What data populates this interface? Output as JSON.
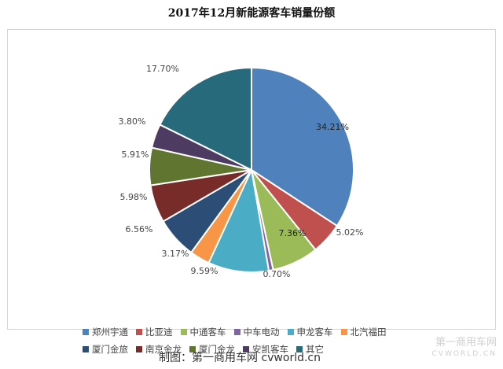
{
  "chart_data": {
    "type": "pie",
    "title": "2017年12月新能源客车销量份额",
    "slices": [
      {
        "label": "郑州宇通",
        "value": 34.21,
        "display": "34.21%",
        "color": "#4f81bd"
      },
      {
        "label": "比亚迪",
        "value": 5.02,
        "display": "5.02%",
        "color": "#c0504d"
      },
      {
        "label": "中通客车",
        "value": 7.36,
        "display": "7.36%",
        "color": "#9bbb59"
      },
      {
        "label": "中车电动",
        "value": 0.7,
        "display": "0.70%",
        "color": "#8064a2"
      },
      {
        "label": "申龙客车",
        "value": 9.59,
        "display": "9.59%",
        "color": "#4bacc6"
      },
      {
        "label": "北汽福田",
        "value": 3.17,
        "display": "3.17%",
        "color": "#f79646"
      },
      {
        "label": "厦门金旅",
        "value": 6.56,
        "display": "6.56%",
        "color": "#2c4d75"
      },
      {
        "label": "南京金龙",
        "value": 5.98,
        "display": "5.98%",
        "color": "#772c2a"
      },
      {
        "label": "厦门金龙",
        "value": 5.91,
        "display": "5.91%",
        "color": "#5f7530"
      },
      {
        "label": "安凯客车",
        "value": 3.8,
        "display": "3.80%",
        "color": "#4d3b62"
      },
      {
        "label": "其它",
        "value": 17.7,
        "display": "17.70%",
        "color": "#276a7c"
      }
    ],
    "legend_position": "bottom"
  },
  "credit": "制图：第一商用车网 cvworld.cn",
  "watermark": {
    "main": "第一商用车网",
    "sub": "CVWORLD.CN"
  }
}
